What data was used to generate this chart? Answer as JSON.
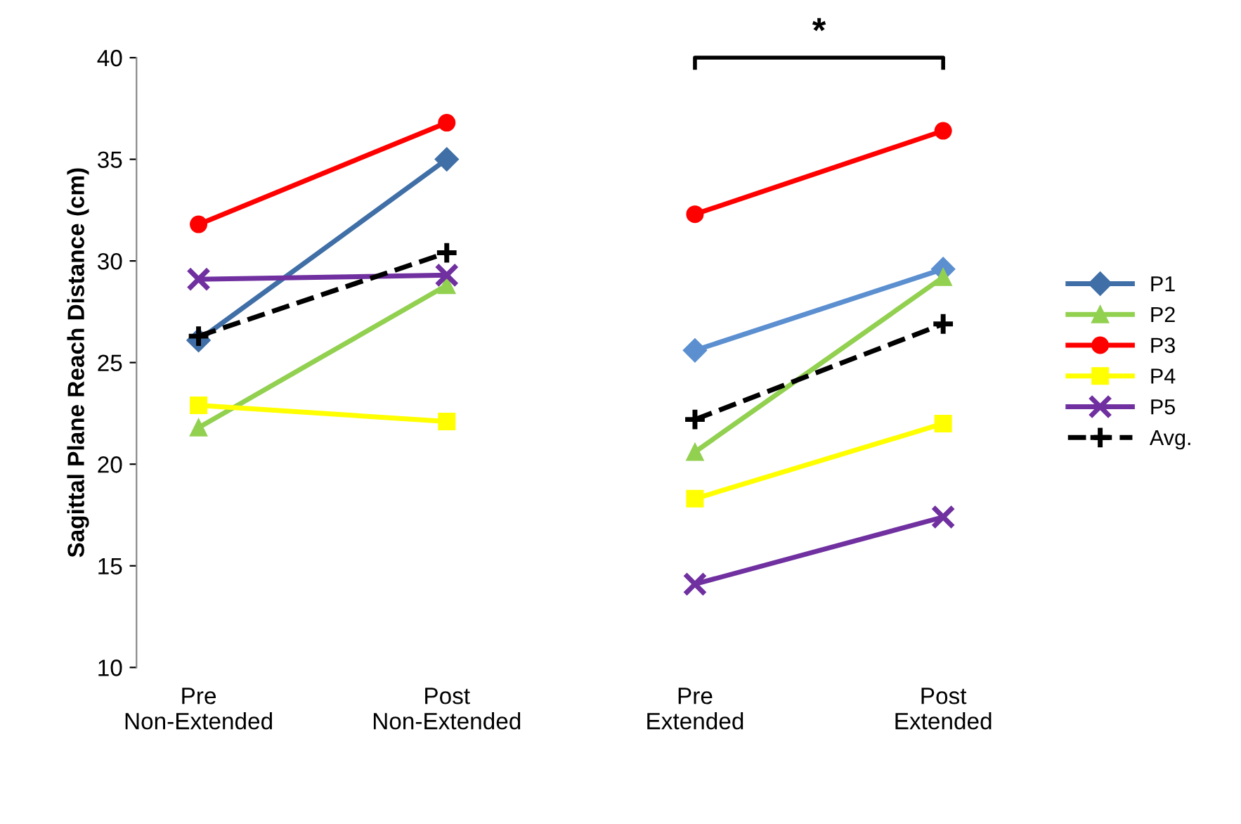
{
  "chart_data": {
    "type": "line",
    "ylabel": "Sagittal Plane Reach Distance (cm)",
    "categories": [
      "Pre\nNon-Extended",
      "Post\nNon-Extended",
      "Pre\nExtended",
      "Post\nExtended"
    ],
    "ylim": [
      10,
      40
    ],
    "yticks": [
      10,
      15,
      20,
      25,
      30,
      35,
      40
    ],
    "grid": false,
    "legend": "right",
    "annotations": [
      "*"
    ],
    "series": [
      {
        "name": "P1",
        "color": "#3f6fa6",
        "marker": "diamond",
        "line_style": "solid",
        "values": [
          26.1,
          35.0,
          null,
          null
        ]
      },
      {
        "color": "#5b8fd0",
        "marker": "diamond",
        "line_style": "solid",
        "values": [
          null,
          null,
          25.6,
          29.6
        ]
      },
      {
        "name": "P2",
        "color": "#92d050",
        "marker": "triangle",
        "line_style": "solid",
        "values": [
          21.8,
          28.8,
          null,
          null
        ]
      },
      {
        "color": "#92d050",
        "marker": "triangle",
        "line_style": "solid",
        "values": [
          null,
          null,
          20.6,
          29.2
        ]
      },
      {
        "name": "P3",
        "color": "#ff0000",
        "marker": "circle",
        "line_style": "solid",
        "values": [
          31.8,
          36.8,
          null,
          null
        ]
      },
      {
        "color": "#ff0000",
        "marker": "circle",
        "line_style": "solid",
        "values": [
          null,
          null,
          32.3,
          36.4
        ]
      },
      {
        "name": "P4",
        "color": "#ffff00",
        "marker": "square",
        "line_style": "solid",
        "values": [
          22.9,
          22.1,
          null,
          null
        ]
      },
      {
        "color": "#ffff00",
        "marker": "square",
        "line_style": "solid",
        "values": [
          null,
          null,
          18.3,
          22.0
        ]
      },
      {
        "name": "P5",
        "color": "#7030a0",
        "marker": "cross",
        "line_style": "solid",
        "values": [
          29.1,
          29.3,
          null,
          null
        ]
      },
      {
        "color": "#7030a0",
        "marker": "cross",
        "line_style": "solid",
        "values": [
          null,
          null,
          14.1,
          17.4
        ]
      },
      {
        "name": "Avg.",
        "color": "#000000",
        "marker": "plus",
        "line_style": "dashed",
        "values": [
          26.3,
          30.4,
          null,
          null
        ]
      },
      {
        "color": "#000000",
        "marker": "plus",
        "line_style": "dashed",
        "values": [
          null,
          null,
          22.2,
          26.9
        ]
      }
    ]
  }
}
